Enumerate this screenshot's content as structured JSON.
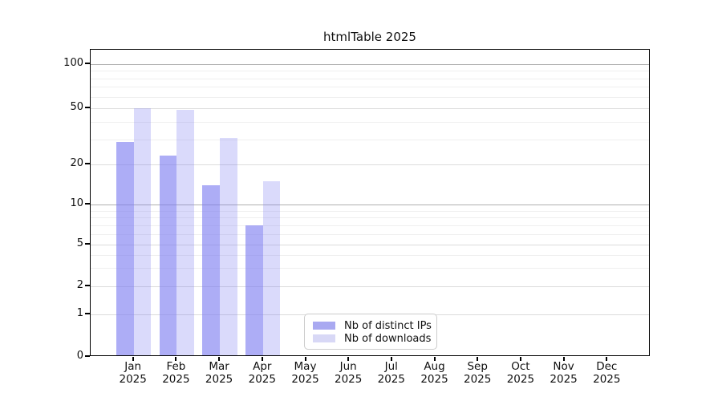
{
  "title": "htmlTable 2025",
  "chart_data": {
    "type": "bar",
    "title": "htmlTable 2025",
    "categories": [
      "Jan",
      "Feb",
      "Mar",
      "Apr",
      "May",
      "Jun",
      "Jul",
      "Aug",
      "Sep",
      "Oct",
      "Nov",
      "Dec"
    ],
    "year_label": "2025",
    "series": [
      {
        "name": "Nb of distinct IPs",
        "color": "rgba(122,122,240,0.62)",
        "swatch_color": "#a9a9f1",
        "values": [
          29,
          23,
          14,
          7,
          0,
          0,
          0,
          0,
          0,
          0,
          0,
          0
        ]
      },
      {
        "name": "Nb of downloads",
        "color": "rgba(122,122,240,0.28)",
        "swatch_color": "#d8d8f6",
        "values": [
          50,
          49,
          31,
          15,
          0,
          0,
          0,
          0,
          0,
          0,
          0,
          0
        ]
      }
    ],
    "y_axis": {
      "scale": "log-like",
      "ticks": [
        0,
        1,
        2,
        5,
        10,
        20,
        50,
        100
      ],
      "minor_ticks": [
        3,
        4,
        6,
        7,
        8,
        9,
        30,
        40,
        60,
        70,
        80,
        90
      ],
      "emphasized_ticks": [
        10,
        100
      ]
    },
    "x_axis": {
      "tick_line1": [
        "Jan",
        "Feb",
        "Mar",
        "Apr",
        "May",
        "Jun",
        "Jul",
        "Aug",
        "Sep",
        "Oct",
        "Nov",
        "Dec"
      ],
      "tick_line2": "2025"
    },
    "legend_position": "bottom-center",
    "grid": true
  },
  "legend": {
    "items": [
      {
        "label": "Nb of distinct IPs"
      },
      {
        "label": "Nb of downloads"
      }
    ]
  },
  "colors": {
    "bar_distinct_ips": "rgba(122,122,240,0.62)",
    "bar_downloads": "rgba(122,122,240,0.28)",
    "swatch_distinct_ips": "#a9a9f1",
    "swatch_downloads": "#d8d8f6",
    "grid_major": "#dcdcdc",
    "grid_minor": "#efefef",
    "grid_emphasized": "#b0b0b0",
    "axis_line": "#000000",
    "background": "#ffffff"
  }
}
